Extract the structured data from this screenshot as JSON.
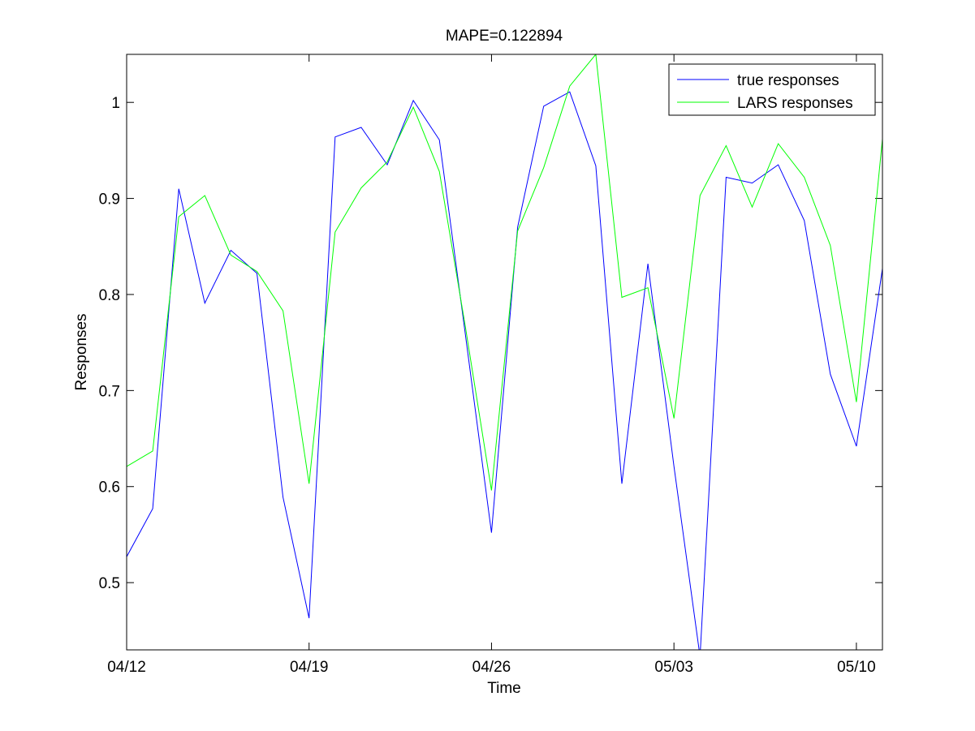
{
  "chart_data": {
    "type": "line",
    "title": "MAPE=0.122894",
    "xlabel": "Time",
    "ylabel": "Responses",
    "xlim": [
      "04/12",
      "05/11"
    ],
    "ylim": [
      0.43,
      1.05
    ],
    "x_ticks": [
      "04/12",
      "04/19",
      "04/26",
      "05/03",
      "05/10"
    ],
    "y_ticks": [
      "0.5",
      "0.6",
      "0.7",
      "0.8",
      "0.9",
      "1"
    ],
    "grid": false,
    "legend_position": "top-right",
    "x": [
      "04/12",
      "04/13",
      "04/14",
      "04/15",
      "04/16",
      "04/17",
      "04/18",
      "04/19",
      "04/20",
      "04/21",
      "04/22",
      "04/23",
      "04/24",
      "04/25",
      "04/26",
      "04/27",
      "04/28",
      "04/29",
      "04/30",
      "05/01",
      "05/02",
      "05/03",
      "05/04",
      "05/05",
      "05/06",
      "05/07",
      "05/08",
      "05/09",
      "05/10",
      "05/11"
    ],
    "series": [
      {
        "name": "true responses",
        "color": "#0000ff",
        "values": [
          0.527,
          0.577,
          0.91,
          0.791,
          0.846,
          0.822,
          0.589,
          0.463,
          0.964,
          0.974,
          0.935,
          1.002,
          0.961,
          0.758,
          0.552,
          0.87,
          0.996,
          1.011,
          0.934,
          0.603,
          0.832,
          0.621,
          0.423,
          0.922,
          0.916,
          0.935,
          0.877,
          0.717,
          0.642,
          0.827
        ]
      },
      {
        "name": "LARS responses",
        "color": "#00ff00",
        "values": [
          0.621,
          0.637,
          0.881,
          0.903,
          0.841,
          0.824,
          0.783,
          0.603,
          0.865,
          0.911,
          0.938,
          0.995,
          0.928,
          0.766,
          0.596,
          0.866,
          0.932,
          1.017,
          1.05,
          0.797,
          0.807,
          0.671,
          0.903,
          0.955,
          0.891,
          0.957,
          0.922,
          0.851,
          0.688,
          0.962
        ]
      }
    ]
  }
}
